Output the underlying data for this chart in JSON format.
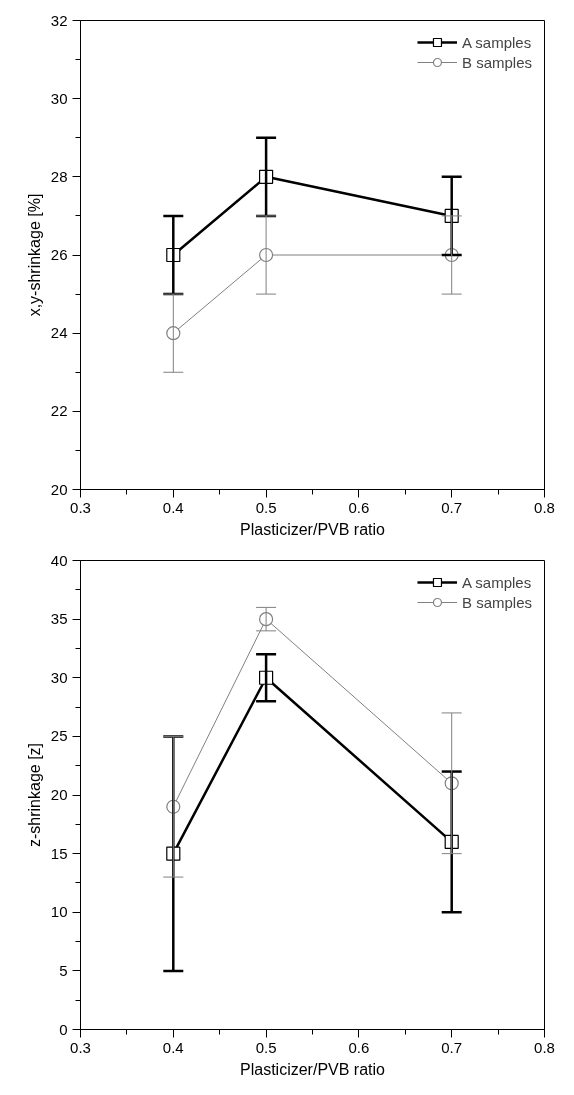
{
  "chart_data": [
    {
      "type": "line",
      "xlabel": "Plasticizer/PVB ratio",
      "ylabel": "x,y-shrinkage [%]",
      "x": [
        0.4,
        0.5,
        0.7
      ],
      "xlim": [
        0.3,
        0.8
      ],
      "xticks": [
        0.3,
        {
          "value": 0.35,
          "label": null
        },
        0.4,
        {
          "value": 0.45,
          "label": null
        },
        0.5,
        {
          "value": 0.55,
          "label": null
        },
        0.6,
        {
          "value": 0.65,
          "label": null
        },
        0.7,
        {
          "value": 0.75,
          "label": null
        },
        0.8
      ],
      "ylim": [
        20,
        32
      ],
      "yticks": [
        20,
        {
          "value": 21,
          "label": null
        },
        22,
        {
          "value": 23,
          "label": null
        },
        24,
        {
          "value": 25,
          "label": null
        },
        26,
        {
          "value": 27,
          "label": null
        },
        28,
        {
          "value": 29,
          "label": null
        },
        30,
        {
          "value": 31,
          "label": null
        },
        32
      ],
      "grid": false,
      "legend": "top right",
      "series": [
        {
          "name": "A samples",
          "color": "#000000",
          "marker": "square",
          "values": [
            26,
            28,
            27
          ],
          "errors": [
            [
              25,
              27
            ],
            [
              27,
              29
            ],
            [
              26,
              28
            ]
          ]
        },
        {
          "name": "B samples",
          "color": "#808080",
          "marker": "circle",
          "values": [
            24,
            26,
            26
          ],
          "errors": [
            [
              23,
              25
            ],
            [
              25,
              27
            ],
            [
              25,
              27
            ]
          ]
        }
      ]
    },
    {
      "type": "line",
      "xlabel": "Plasticizer/PVB ratio",
      "ylabel": "z-shrinkage [z]",
      "x": [
        0.4,
        0.5,
        0.7
      ],
      "xlim": [
        0.3,
        0.8
      ],
      "xticks": [
        0.3,
        {
          "value": 0.35,
          "label": null
        },
        0.4,
        {
          "value": 0.45,
          "label": null
        },
        0.5,
        {
          "value": 0.55,
          "label": null
        },
        0.6,
        {
          "value": 0.65,
          "label": null
        },
        0.7,
        {
          "value": 0.75,
          "label": null
        },
        0.8
      ],
      "ylim": [
        0,
        40
      ],
      "yticks": [
        0,
        {
          "value": 2.5,
          "label": null
        },
        5,
        {
          "value": 7.5,
          "label": null
        },
        10,
        {
          "value": 12.5,
          "label": null
        },
        15,
        {
          "value": 17.5,
          "label": null
        },
        20,
        {
          "value": 22.5,
          "label": null
        },
        25,
        {
          "value": 27.5,
          "label": null
        },
        30,
        {
          "value": 32.5,
          "label": null
        },
        35,
        {
          "value": 37.5,
          "label": null
        },
        40
      ],
      "grid": false,
      "legend": "top right",
      "series": [
        {
          "name": "A samples",
          "color": "#000000",
          "marker": "square",
          "values": [
            15,
            30,
            16
          ],
          "errors": [
            [
              5,
              25
            ],
            [
              28,
              32
            ],
            [
              10,
              22
            ]
          ]
        },
        {
          "name": "B samples",
          "color": "#808080",
          "marker": "circle",
          "values": [
            19,
            35,
            21
          ],
          "errors": [
            [
              13,
              25
            ],
            [
              34,
              36
            ],
            [
              15,
              27
            ]
          ]
        }
      ]
    }
  ]
}
